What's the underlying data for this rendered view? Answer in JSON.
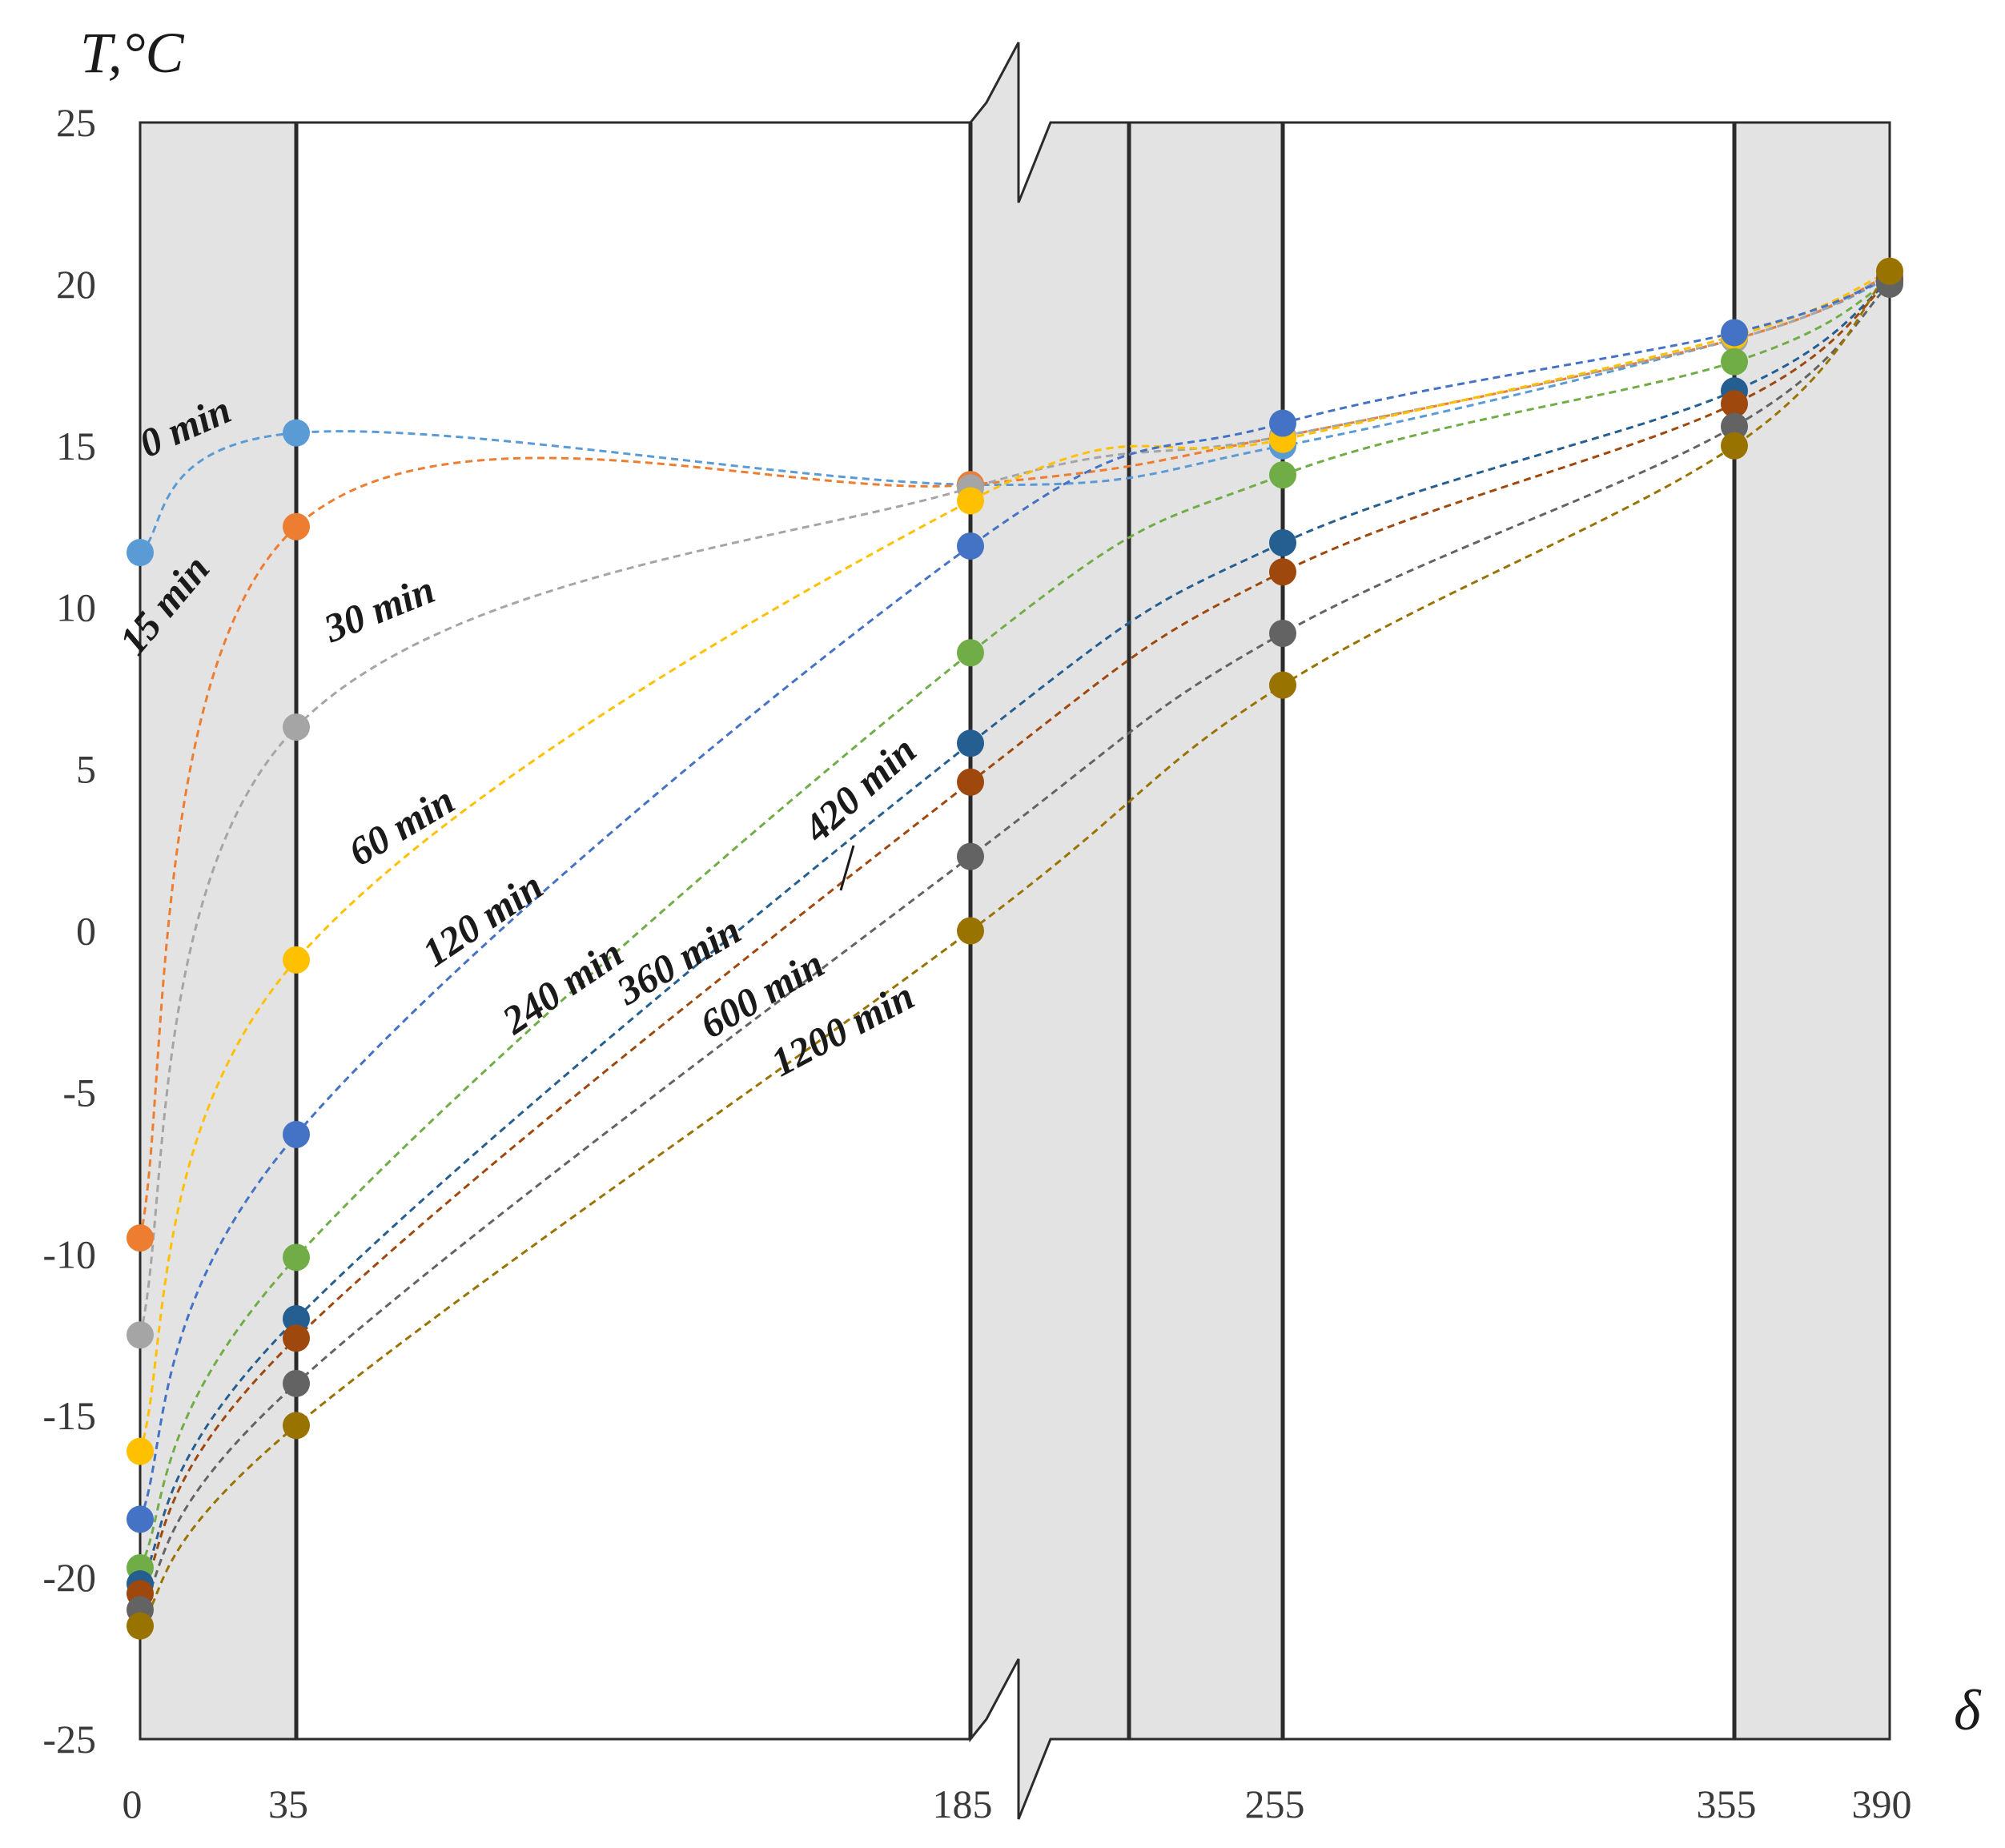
{
  "chart_data": {
    "type": "line",
    "title": "",
    "xlabel": "δ",
    "ylabel": "T,°C",
    "x": [
      0,
      35,
      185,
      255,
      355,
      390
    ],
    "x_tick_labels": [
      "0",
      "35",
      "185",
      "255",
      "355",
      "390"
    ],
    "ylim": [
      -25,
      25
    ],
    "y_ticks": [
      25,
      20,
      15,
      10,
      5,
      0,
      -5,
      -10,
      -15,
      -20,
      -25
    ],
    "y_tick_labels": [
      "25",
      "20",
      "15",
      "10",
      "5",
      "0",
      "-5",
      "-10",
      "-15",
      "-20",
      "-25"
    ],
    "axis_break_between": [
      185,
      255
    ],
    "shaded_layers": [
      [
        0,
        35
      ],
      [
        185,
        255
      ],
      [
        355,
        390
      ]
    ],
    "series": [
      {
        "name": "0 min",
        "color": "#5b9bd5",
        "values": [
          11.7,
          15.4,
          13.8,
          15.0,
          18.3,
          20.2
        ]
      },
      {
        "name": "15 min",
        "color": "#ed7d31",
        "values": [
          -9.5,
          12.5,
          13.8,
          15.3,
          18.3,
          20.3
        ]
      },
      {
        "name": "30 min",
        "color": "#a5a5a5",
        "values": [
          -12.5,
          6.3,
          13.7,
          15.3,
          18.3,
          20.3
        ]
      },
      {
        "name": "60 min",
        "color": "#ffc000",
        "values": [
          -16.1,
          -0.9,
          13.3,
          15.2,
          18.4,
          20.4
        ]
      },
      {
        "name": "120 min",
        "color": "#4472c4",
        "values": [
          -18.2,
          -6.3,
          11.9,
          15.7,
          18.5,
          20.2
        ]
      },
      {
        "name": "240 min",
        "color": "#70ad47",
        "values": [
          -19.7,
          -10.1,
          8.6,
          14.1,
          17.6,
          20.1
        ]
      },
      {
        "name": "360 min",
        "color": "#255e91",
        "values": [
          -20.2,
          -12.0,
          5.8,
          12.0,
          16.7,
          20.1
        ]
      },
      {
        "name": "420 min",
        "color": "#9e480e",
        "values": [
          -20.5,
          -12.6,
          4.6,
          11.1,
          16.3,
          20.1
        ]
      },
      {
        "name": "600 min",
        "color": "#636363",
        "values": [
          -21.0,
          -14.0,
          2.3,
          9.2,
          15.6,
          20.0
        ]
      },
      {
        "name": "1200 min",
        "color": "#997300",
        "values": [
          -21.5,
          -15.3,
          0.0,
          7.6,
          15.0,
          20.4
        ]
      }
    ]
  }
}
